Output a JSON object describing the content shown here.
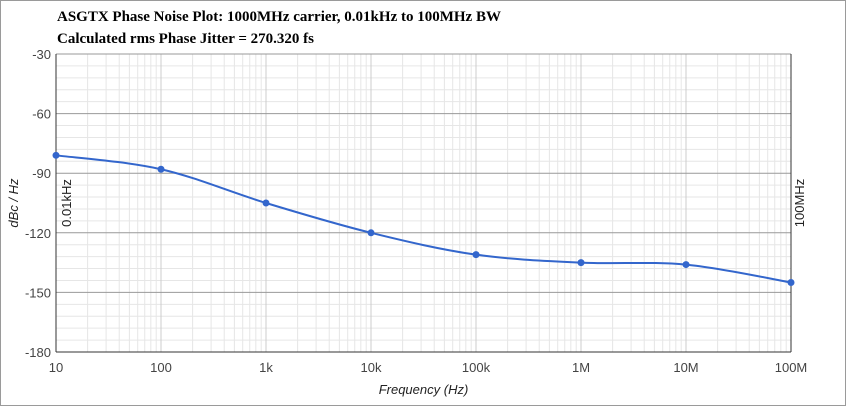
{
  "chart_data": {
    "type": "line",
    "title": "ASGTX Phase Noise Plot: 1000MHz carrier, 0.01kHz to 100MHz BW",
    "subtitle": "Calculated rms Phase Jitter = 270.320 fs",
    "xlabel": "Frequency (Hz)",
    "ylabel": "dBc / Hz",
    "x_scale": "log",
    "xlim": [
      10,
      100000000
    ],
    "ylim": [
      -180,
      -30
    ],
    "x_ticks": [
      10,
      100,
      1000,
      10000,
      100000,
      1000000,
      10000000,
      100000000
    ],
    "x_tick_labels": [
      "10",
      "100",
      "1k",
      "10k",
      "100k",
      "1M",
      "10M",
      "100M"
    ],
    "y_ticks": [
      -30,
      -60,
      -90,
      -120,
      -150,
      -180
    ],
    "grid": true,
    "line_color": "#3366cc",
    "x": [
      10,
      100,
      1000,
      10000,
      100000,
      1000000,
      10000000,
      100000000
    ],
    "y": [
      -81,
      -88,
      -105,
      -120,
      -131,
      -135,
      -136,
      -145
    ],
    "markers": [
      {
        "x": 10,
        "label": "0.01kHz"
      },
      {
        "x": 100000000,
        "label": "100MHz"
      }
    ]
  }
}
